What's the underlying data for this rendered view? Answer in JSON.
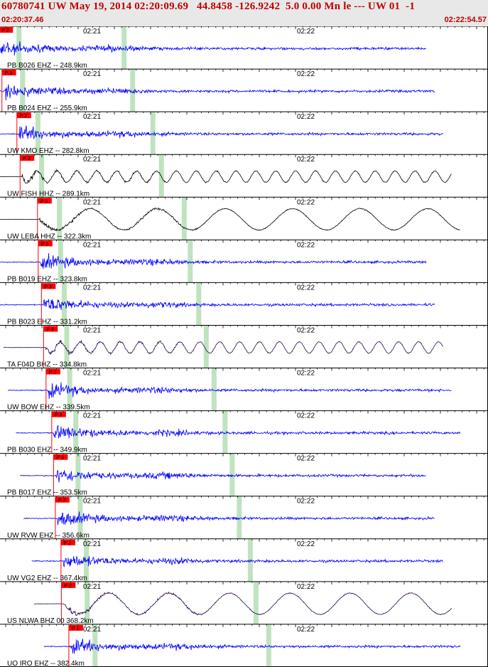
{
  "header": {
    "title": "60780741 UW May 19, 2014 02:20:09.69   44.8458 -126.9242  5.0 0.00 Mn le --- UW 01  -1",
    "start_time": "02:20:37.46",
    "end_time": "02:22:54.57"
  },
  "colors": {
    "header_bg": "#e8e8e8",
    "header_text": "#c00000",
    "trace_blue": "#0000ff",
    "trace_black": "#000000",
    "trace_purple": "#2a0a4a",
    "pick_red": "#ff0000",
    "window_green": "#bfe3bf"
  },
  "chart_data": {
    "type": "line",
    "title": "60780741 UW May 19, 2014 02:20:09.69   44.8458 -126.9242  5.0 0.00 Mn le --- UW 01  -1",
    "x_range": [
      "02:20:37.46",
      "02:22:54.57"
    ],
    "tick_labels": [
      "02:21",
      "02:22"
    ],
    "traces": [
      {
        "station": "PB B026 EHZ -- 248.9km",
        "pick": "P 2",
        "pick_time": "02:20:37.7",
        "style": "blue"
      },
      {
        "station": "PB B024 EHZ -- 255.9km",
        "pick": "P 3",
        "pick_time": "02:20:38.6",
        "style": "blue"
      },
      {
        "station": "UW KMO EHZ -- 282.8km",
        "pick": "P 2",
        "pick_time": "02:20:42.8",
        "style": "blue"
      },
      {
        "station": "UW FISH HHZ -- 289.1km",
        "pick": "P 3",
        "pick_time": "02:20:43.7",
        "style": "black"
      },
      {
        "station": "UW LEBA HHZ -- 322.3km",
        "pick": "P 3",
        "pick_time": "02:20:48.6",
        "style": "black"
      },
      {
        "station": "PB B019 EHZ -- 323.8km",
        "pick": "P 3",
        "pick_time": "02:20:48.8",
        "style": "blue"
      },
      {
        "station": "PB B023 EHZ -- 331.2km",
        "pick": "P 3",
        "pick_time": "02:20:49.7",
        "style": "blue"
      },
      {
        "station": "TA F04D BHZ -- 334.8km",
        "pick": "P 3",
        "pick_time": "02:20:50.3",
        "style": "purple"
      },
      {
        "station": "UW BOW EHZ -- 339.5km",
        "pick": "P 3",
        "pick_time": "02:20:51.0",
        "style": "blue"
      },
      {
        "station": "PB B030 EHZ -- 349.9km",
        "pick": "P 3",
        "pick_time": "02:20:52.6",
        "style": "blue"
      },
      {
        "station": "PB B017 EHZ -- 353.5km",
        "pick": "P 3",
        "pick_time": "02:20:53.1",
        "style": "blue"
      },
      {
        "station": "UW RVW EHZ -- 356.6km",
        "pick": "P 3",
        "pick_time": "02:20:53.6",
        "style": "blue"
      },
      {
        "station": "UW VG2 EHZ -- 367.4km",
        "pick": "P 2",
        "pick_time": "02:20:55.2",
        "style": "blue"
      },
      {
        "station": "US NLWA BHZ 00 368.2km",
        "pick": "P 2",
        "pick_time": "02:20:55.3",
        "style": "purple"
      },
      {
        "station": "UO IRO EHZ -- 382.4km",
        "pick": "P 1",
        "pick_time": "02:20:57.4",
        "style": "blue"
      }
    ]
  }
}
